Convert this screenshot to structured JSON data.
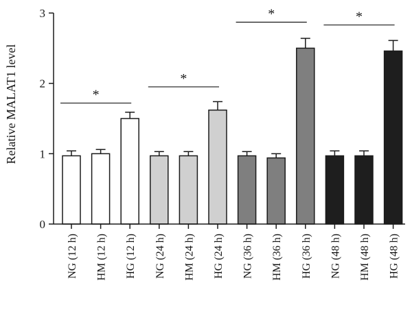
{
  "chart_data": {
    "type": "bar",
    "ylabel": "Relative MALAT1 level",
    "ylim": [
      0,
      3
    ],
    "yticks": [
      "0",
      "1",
      "2",
      "3"
    ],
    "categories": [
      "NG (12 h)",
      "HM (12 h)",
      "HG (12 h)",
      "NG (24 h)",
      "HM (24 h)",
      "HG (24 h)",
      "NG (36 h)",
      "HM (36 h)",
      "HG (36 h)",
      "NG (48 h)",
      "HM (48 h)",
      "HG (48 h)"
    ],
    "values": [
      0.97,
      1.0,
      1.5,
      0.97,
      0.97,
      1.62,
      0.97,
      0.94,
      2.5,
      0.97,
      0.97,
      2.46
    ],
    "errors": [
      0.07,
      0.06,
      0.09,
      0.06,
      0.06,
      0.12,
      0.06,
      0.06,
      0.14,
      0.07,
      0.07,
      0.15
    ],
    "bar_colors": [
      "#ffffff",
      "#ffffff",
      "#ffffff",
      "#d0d0d0",
      "#d0d0d0",
      "#d0d0d0",
      "#7f7f7f",
      "#7f7f7f",
      "#7f7f7f",
      "#1e1e1e",
      "#1e1e1e",
      "#1e1e1e"
    ],
    "significance": [
      {
        "from": 0,
        "to": 2,
        "y": 1.72,
        "label": "*"
      },
      {
        "from": 3,
        "to": 5,
        "y": 1.95,
        "label": "*"
      },
      {
        "from": 6,
        "to": 8,
        "y": 2.87,
        "label": "*"
      },
      {
        "from": 9,
        "to": 11,
        "y": 2.83,
        "label": "*"
      }
    ],
    "grid": false,
    "legend": "none"
  }
}
